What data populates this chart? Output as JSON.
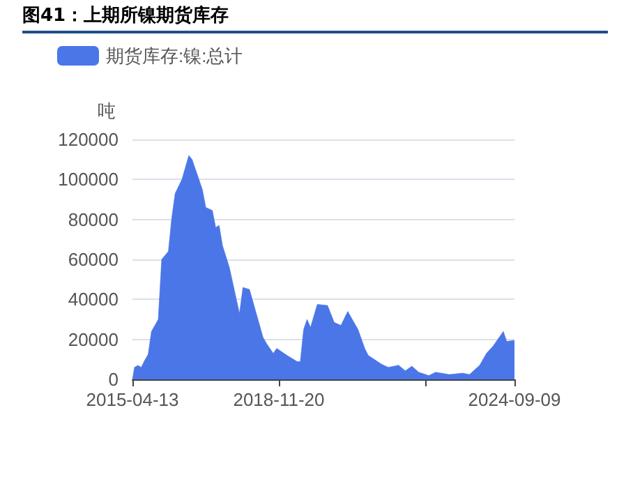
{
  "chart_data": {
    "type": "area",
    "title": "图41：上期所镍期货库存",
    "ylabel": "吨",
    "x": [
      "2015-04-13",
      "2015-05",
      "2015-06",
      "2015-07",
      "2015-08",
      "2015-09",
      "2015-10",
      "2015-11",
      "2015-12",
      "2016-01",
      "2016-03",
      "2016-04",
      "2016-05",
      "2016-07",
      "2016-09",
      "2016-10",
      "2016-12",
      "2017-01",
      "2017-02",
      "2017-04",
      "2017-05",
      "2017-06",
      "2017-07",
      "2017-09",
      "2017-11",
      "2017-12",
      "2018-01",
      "2018-03",
      "2018-05",
      "2018-07",
      "2018-08",
      "2018-10",
      "2018-11",
      "2019-02",
      "2019-05",
      "2019-06",
      "2019-07",
      "2019-08",
      "2019-09",
      "2019-11",
      "2020-02",
      "2020-04",
      "2020-06",
      "2020-08",
      "2020-11",
      "2021-01",
      "2021-02",
      "2021-06",
      "2021-08",
      "2021-11",
      "2022-01",
      "2022-03",
      "2022-05",
      "2022-08",
      "2022-10",
      "2023-02",
      "2023-06",
      "2023-08",
      "2023-11",
      "2024-01",
      "2024-03",
      "2024-06",
      "2024-07",
      "2024-09-09"
    ],
    "series": [
      {
        "name": "期货库存:镍:总计",
        "color": "#4a76e8",
        "values": [
          0,
          6000,
          7000,
          6000,
          9500,
          12500,
          24000,
          27000,
          30000,
          60000,
          64000,
          81000,
          93000,
          100000,
          112000,
          110000,
          100000,
          95000,
          86000,
          84500,
          76000,
          77000,
          67000,
          56000,
          40500,
          33000,
          46000,
          45000,
          33000,
          21000,
          18000,
          13000,
          15500,
          12000,
          9000,
          8800,
          25000,
          30000,
          26000,
          37500,
          37000,
          28500,
          27000,
          34000,
          25000,
          15500,
          12000,
          7600,
          6000,
          7100,
          4300,
          6600,
          3600,
          1900,
          3600,
          2400,
          3100,
          2400,
          7100,
          13000,
          16700,
          24000,
          19000,
          19500
        ]
      }
    ],
    "xlim": [
      "2015-04-13",
      "2024-09-09"
    ],
    "xticks": [
      {
        "value": "2015-04-13",
        "label": "2015-04-13"
      },
      {
        "value": "2018-11-20",
        "label": "2018-11-20"
      },
      {
        "value": "2022-07-05",
        "label": null
      },
      {
        "value": "2024-09-09",
        "label": "2024-09-09"
      }
    ],
    "ylim": [
      0,
      120000
    ],
    "yticks": [
      0,
      20000,
      40000,
      60000,
      80000,
      100000,
      120000
    ],
    "grid": "y",
    "legend": "top left",
    "marker": "none"
  }
}
